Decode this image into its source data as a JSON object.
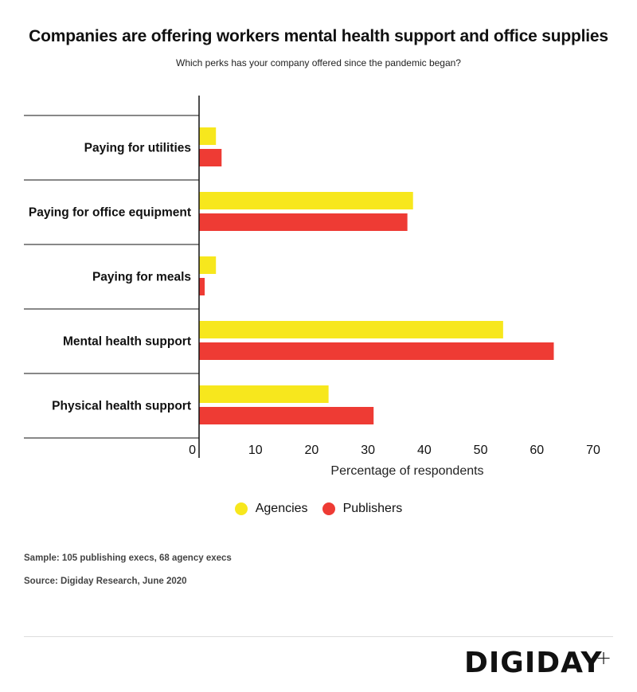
{
  "chart_data": {
    "type": "bar",
    "orientation": "horizontal",
    "title": "Companies are offering workers mental health support and office supplies",
    "subtitle": "Which perks has your company offered since the pandemic began?",
    "categories": [
      "Paying for utilities",
      "Paying for office equipment",
      "Paying for meals",
      "Mental health support",
      "Physical health support"
    ],
    "series": [
      {
        "name": "Agencies",
        "color": "#f7e71d",
        "values": [
          3,
          38,
          3,
          54,
          23
        ]
      },
      {
        "name": "Publishers",
        "color": "#ee3b34",
        "values": [
          4,
          37,
          1,
          63,
          31
        ]
      }
    ],
    "xlabel": "Percentage of respondents",
    "xlim": [
      0,
      70
    ],
    "xticks": [
      "0",
      "10",
      "20",
      "30",
      "40",
      "50",
      "60",
      "70"
    ],
    "legend": "bottom-center"
  },
  "notes": {
    "sample": "Sample: 105 publishing execs, 68 agency execs",
    "source": "Source: Digiday Research, June 2020"
  },
  "branding": {
    "logo_text": "DIGIDAY",
    "logo_plus": "+"
  }
}
